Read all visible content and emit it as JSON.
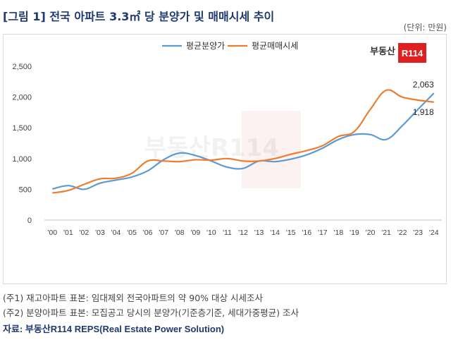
{
  "title": "[그림 1] 전국 아파트 3.3㎡ 당 분양가 및 매매시세 추이",
  "unit": "(단위: 만원)",
  "logo": {
    "brand_text": "부동산",
    "mark_text": "R114",
    "mark_color": "#e02020"
  },
  "watermark": "부동산R114",
  "notes": [
    "(주1) 재고아파트 표본: 임대제외 전국아파트의 약 90% 대상 시세조사",
    "(주2) 분양아파트 표본: 모집공고 당시의 분양가(기준층기준, 세대가중평균) 조사"
  ],
  "source": {
    "label": "자료:",
    "text": "부동산R114 REPS(Real Estate Power Solution)"
  },
  "chart_data": {
    "type": "line",
    "categories": [
      "'00",
      "'01",
      "'02",
      "'03",
      "'04",
      "'05",
      "'06",
      "'07",
      "'08",
      "'09",
      "'10",
      "'11",
      "'12",
      "'13",
      "'14",
      "'15",
      "'16",
      "'17",
      "'18",
      "'19",
      "'20",
      "'21",
      "'22",
      "'23",
      "'24"
    ],
    "series": [
      {
        "name": "평균분양가",
        "color": "#5b9bd5",
        "values": [
          505,
          560,
          500,
          600,
          650,
          700,
          800,
          980,
          1090,
          1050,
          960,
          860,
          840,
          960,
          950,
          990,
          1060,
          1170,
          1310,
          1390,
          1390,
          1310,
          1530,
          1800,
          2063
        ]
      },
      {
        "name": "평균매매시세",
        "color": "#ed7d31",
        "values": [
          440,
          480,
          580,
          670,
          680,
          760,
          960,
          960,
          950,
          980,
          975,
          1000,
          960,
          960,
          1000,
          1070,
          1130,
          1210,
          1360,
          1440,
          1800,
          2110,
          2000,
          1950,
          1918
        ]
      }
    ],
    "data_labels": [
      {
        "series": 0,
        "index": 24,
        "text": "2,063"
      },
      {
        "series": 1,
        "index": 24,
        "text": "1,918"
      }
    ],
    "y_ticks": [
      "0",
      "500",
      "1,000",
      "1,500",
      "2,000",
      "2,500"
    ],
    "ylim": [
      0,
      2500
    ],
    "legend_position": "top-center",
    "grid": false
  }
}
